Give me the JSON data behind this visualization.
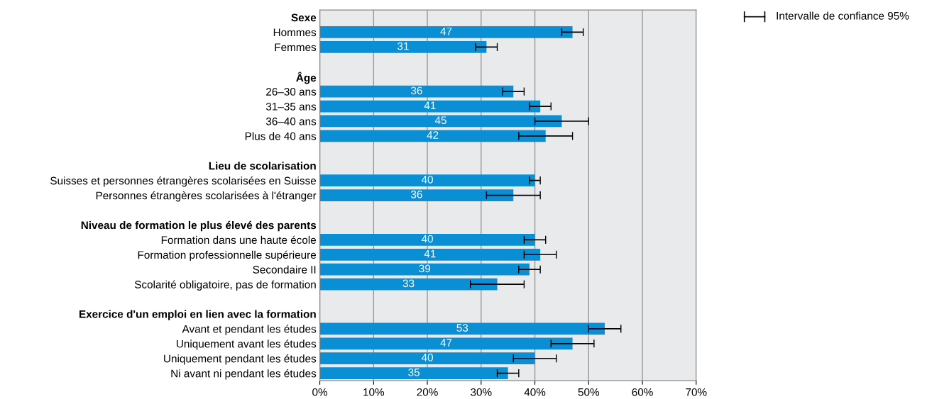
{
  "chart_data": {
    "type": "bar",
    "orientation": "horizontal",
    "categories": [
      "Sexe",
      "Hommes",
      "Femmes",
      null,
      "Âge",
      "26–30 ans",
      "31–35 ans",
      "36–40 ans",
      "Plus de 40 ans",
      null,
      "Lieu de scolarisation",
      "Suisses et personnes étrangères scolarisées en Suisse",
      "Personnes étrangères scolarisées à l'étranger",
      null,
      "Niveau de formation le plus élevé des parents",
      "Formation dans une haute école",
      "Formation professionnelle supérieure",
      "Secondaire II",
      "Scolarité obligatoire, pas de formation",
      null,
      "Exercice d'un emploi en lien avec la formation",
      "Avant et pendant les études",
      "Uniquement avant les études",
      "Uniquement pendant les études",
      "Ni avant ni pendant les études"
    ],
    "values": [
      null,
      47,
      31,
      null,
      null,
      36,
      41,
      45,
      42,
      null,
      null,
      40,
      36,
      null,
      null,
      40,
      41,
      39,
      33,
      null,
      null,
      53,
      47,
      40,
      35
    ],
    "errors": [
      null,
      2,
      2,
      null,
      null,
      2,
      2,
      5,
      5,
      null,
      null,
      1,
      5,
      null,
      null,
      2,
      3,
      2,
      5,
      null,
      null,
      3,
      4,
      4,
      2
    ],
    "color": "#0a8fd4",
    "data_labels": true,
    "xlim": [
      0,
      70
    ],
    "xticks": [
      {
        "value": 0,
        "label": "0%"
      },
      {
        "value": 10,
        "label": "10%"
      },
      {
        "value": 20,
        "label": "20%"
      },
      {
        "value": 30,
        "label": "30%"
      },
      {
        "value": 40,
        "label": "40%"
      },
      {
        "value": 50,
        "label": "50%"
      },
      {
        "value": 60,
        "label": "60%"
      },
      {
        "value": 70,
        "label": "70%"
      }
    ],
    "grid": "x",
    "annotations": [
      "Intervalle de confiance 95%"
    ]
  }
}
